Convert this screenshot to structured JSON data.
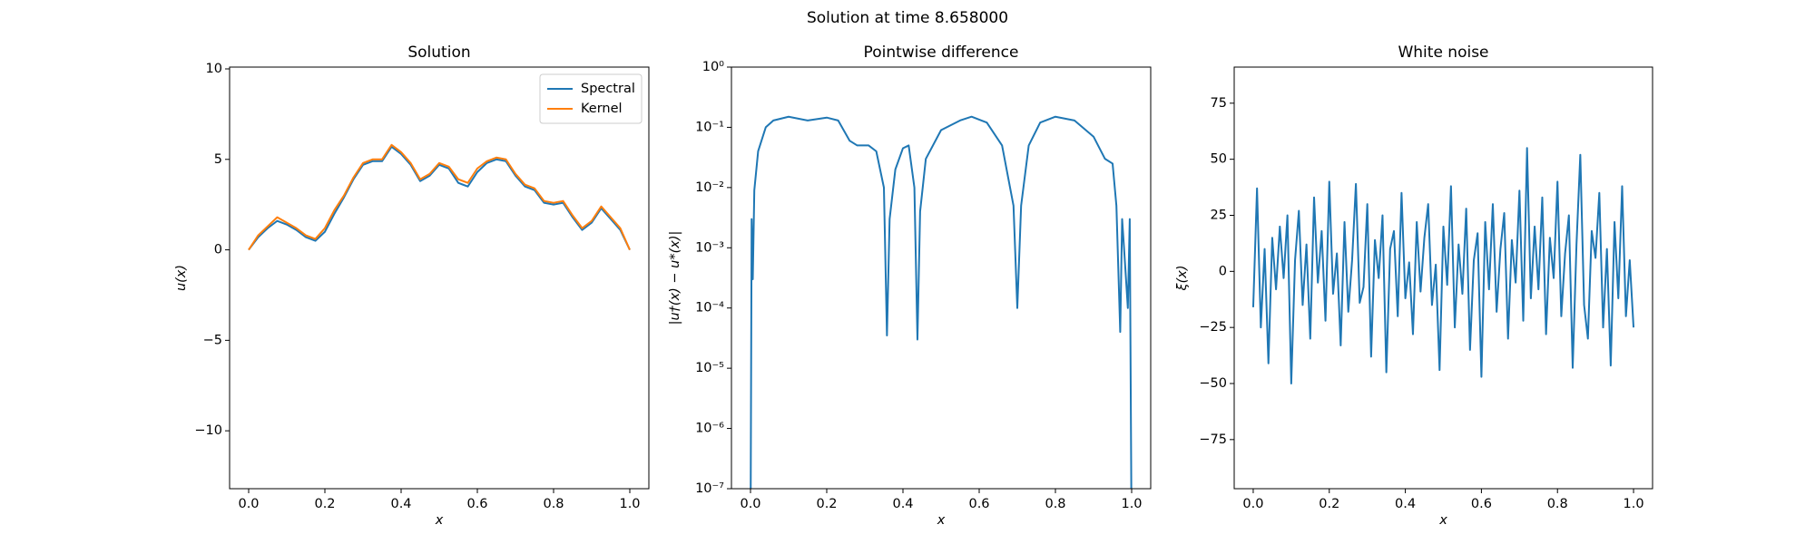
{
  "title": "Solution at time 8.658000",
  "chart_data": [
    {
      "type": "line",
      "title": "Solution",
      "x_label": "x",
      "y_label": "u(x)",
      "x": [
        0,
        0.025,
        0.05,
        0.075,
        0.1,
        0.125,
        0.15,
        0.175,
        0.2,
        0.225,
        0.25,
        0.275,
        0.3,
        0.325,
        0.35,
        0.375,
        0.4,
        0.425,
        0.45,
        0.475,
        0.5,
        0.525,
        0.55,
        0.575,
        0.6,
        0.625,
        0.65,
        0.675,
        0.7,
        0.725,
        0.75,
        0.775,
        0.8,
        0.825,
        0.85,
        0.875,
        0.9,
        0.925,
        0.95,
        0.975,
        1.0
      ],
      "series": [
        {
          "name": "Spectral",
          "color": "#1f77b4",
          "values": [
            0,
            0.7,
            1.2,
            1.6,
            1.4,
            1.1,
            0.7,
            0.5,
            1.0,
            2.0,
            2.9,
            3.9,
            4.7,
            4.9,
            4.9,
            5.7,
            5.3,
            4.7,
            3.8,
            4.1,
            4.7,
            4.5,
            3.7,
            3.5,
            4.3,
            4.8,
            5.0,
            4.9,
            4.1,
            3.5,
            3.3,
            2.6,
            2.5,
            2.6,
            1.8,
            1.1,
            1.5,
            2.3,
            1.7,
            1.1,
            0
          ]
        },
        {
          "name": "Kernel",
          "color": "#ff7f0e",
          "values": [
            0,
            0.8,
            1.3,
            1.8,
            1.5,
            1.2,
            0.8,
            0.6,
            1.2,
            2.2,
            3.0,
            4.0,
            4.8,
            5.0,
            5.0,
            5.8,
            5.4,
            4.8,
            3.9,
            4.2,
            4.8,
            4.6,
            3.9,
            3.7,
            4.5,
            4.9,
            5.1,
            5.0,
            4.2,
            3.6,
            3.4,
            2.7,
            2.6,
            2.7,
            1.9,
            1.2,
            1.6,
            2.4,
            1.8,
            1.2,
            0
          ]
        }
      ],
      "xlim": [
        -0.05,
        1.05
      ],
      "ylim": [
        -13.2,
        10.1
      ],
      "xticks": [
        {
          "value": 0,
          "label": "0.0"
        },
        0.2,
        0.4,
        0.6,
        0.8,
        {
          "value": 1,
          "label": "1.0"
        }
      ],
      "yticks": [
        {
          "value": -10,
          "label": "−10"
        },
        {
          "value": -5,
          "label": "−5"
        },
        0,
        5,
        10
      ],
      "legend": "upper right"
    },
    {
      "type": "line",
      "title": "Pointwise difference",
      "x_label": "x",
      "y_label": "|u†(x) − u*(x)|",
      "yscale": "log",
      "x": [
        0,
        0.003,
        0.006,
        0.01,
        0.02,
        0.04,
        0.06,
        0.1,
        0.15,
        0.2,
        0.23,
        0.26,
        0.28,
        0.31,
        0.33,
        0.35,
        0.358,
        0.365,
        0.38,
        0.4,
        0.415,
        0.43,
        0.438,
        0.445,
        0.46,
        0.5,
        0.55,
        0.58,
        0.62,
        0.66,
        0.69,
        0.7,
        0.71,
        0.73,
        0.76,
        0.8,
        0.85,
        0.9,
        0.93,
        0.95,
        0.96,
        0.97,
        0.975,
        0.98,
        0.99,
        0.995,
        1.0
      ],
      "series": [
        {
          "color": "#1f77b4",
          "values": [
            1e-08,
            0.003,
            0.0003,
            0.009,
            0.04,
            0.1,
            0.13,
            0.15,
            0.13,
            0.145,
            0.13,
            0.06,
            0.05,
            0.05,
            0.04,
            0.01,
            3.5e-05,
            0.003,
            0.02,
            0.045,
            0.05,
            0.01,
            3e-05,
            0.004,
            0.03,
            0.09,
            0.13,
            0.15,
            0.12,
            0.05,
            0.005,
            0.0001,
            0.005,
            0.05,
            0.12,
            0.15,
            0.13,
            0.07,
            0.03,
            0.025,
            0.005,
            4e-05,
            0.003,
            0.001,
            0.0001,
            0.003,
            1e-08
          ]
        }
      ],
      "xlim": [
        -0.05,
        1.05
      ],
      "ylim": [
        1e-07,
        1
      ],
      "xticks": [
        {
          "value": 0,
          "label": "0.0"
        },
        0.2,
        0.4,
        0.6,
        0.8,
        {
          "value": 1,
          "label": "1.0"
        }
      ],
      "yticks": [
        {
          "value": 1e-07,
          "label": "10⁻⁷"
        },
        {
          "value": 1e-06,
          "label": "10⁻⁶"
        },
        {
          "value": 1e-05,
          "label": "10⁻⁵"
        },
        {
          "value": 0.0001,
          "label": "10⁻⁴"
        },
        {
          "value": 0.001,
          "label": "10⁻³"
        },
        {
          "value": 0.01,
          "label": "10⁻²"
        },
        {
          "value": 0.1,
          "label": "10⁻¹"
        },
        {
          "value": 1,
          "label": "10⁰"
        }
      ]
    },
    {
      "type": "line",
      "title": "White noise",
      "x_label": "x",
      "y_label": "ξ(x)",
      "x": [
        0,
        0.01,
        0.02,
        0.03,
        0.04,
        0.05,
        0.06,
        0.07,
        0.08,
        0.09,
        0.1,
        0.11,
        0.12,
        0.13,
        0.14,
        0.15,
        0.16,
        0.17,
        0.18,
        0.19,
        0.2,
        0.21,
        0.22,
        0.23,
        0.24,
        0.25,
        0.26,
        0.27,
        0.28,
        0.29,
        0.3,
        0.31,
        0.32,
        0.33,
        0.34,
        0.35,
        0.36,
        0.37,
        0.38,
        0.39,
        0.4,
        0.41,
        0.42,
        0.43,
        0.44,
        0.45,
        0.46,
        0.47,
        0.48,
        0.49,
        0.5,
        0.51,
        0.52,
        0.53,
        0.54,
        0.55,
        0.56,
        0.57,
        0.58,
        0.59,
        0.6,
        0.61,
        0.62,
        0.63,
        0.64,
        0.65,
        0.66,
        0.67,
        0.68,
        0.69,
        0.7,
        0.71,
        0.72,
        0.73,
        0.74,
        0.75,
        0.76,
        0.77,
        0.78,
        0.79,
        0.8,
        0.81,
        0.82,
        0.83,
        0.84,
        0.85,
        0.86,
        0.87,
        0.88,
        0.89,
        0.9,
        0.91,
        0.92,
        0.93,
        0.94,
        0.95,
        0.96,
        0.97,
        0.98,
        0.99,
        1.0
      ],
      "series": [
        {
          "color": "#1f77b4",
          "values": [
            -16,
            37,
            -25,
            10,
            -41,
            15,
            -8,
            20,
            -3,
            25,
            -50,
            5,
            27,
            -15,
            12,
            -30,
            33,
            -5,
            18,
            -22,
            40,
            -10,
            8,
            -33,
            22,
            -18,
            5,
            39,
            -14,
            -7,
            30,
            -38,
            14,
            -3,
            25,
            -45,
            10,
            18,
            -20,
            35,
            -12,
            4,
            -28,
            22,
            -9,
            15,
            30,
            -15,
            3,
            -44,
            20,
            -6,
            38,
            -25,
            12,
            -10,
            28,
            -35,
            5,
            17,
            -47,
            22,
            -8,
            30,
            -18,
            10,
            26,
            -30,
            14,
            -5,
            36,
            -22,
            55,
            -12,
            20,
            -8,
            33,
            -28,
            15,
            -3,
            40,
            -20,
            8,
            25,
            -43,
            12,
            52,
            -15,
            -30,
            18,
            6,
            35,
            -25,
            10,
            -42,
            22,
            -12,
            38,
            -20,
            5,
            -25
          ]
        }
      ],
      "xlim": [
        -0.05,
        1.05
      ],
      "ylim": [
        -96.9,
        91.1
      ],
      "xticks": [
        {
          "value": 0,
          "label": "0.0"
        },
        0.2,
        0.4,
        0.6,
        0.8,
        {
          "value": 1,
          "label": "1.0"
        }
      ],
      "yticks": [
        {
          "value": -75,
          "label": "−75"
        },
        {
          "value": -50,
          "label": "−50"
        },
        {
          "value": -25,
          "label": "−25"
        },
        0,
        25,
        50,
        75
      ]
    }
  ]
}
